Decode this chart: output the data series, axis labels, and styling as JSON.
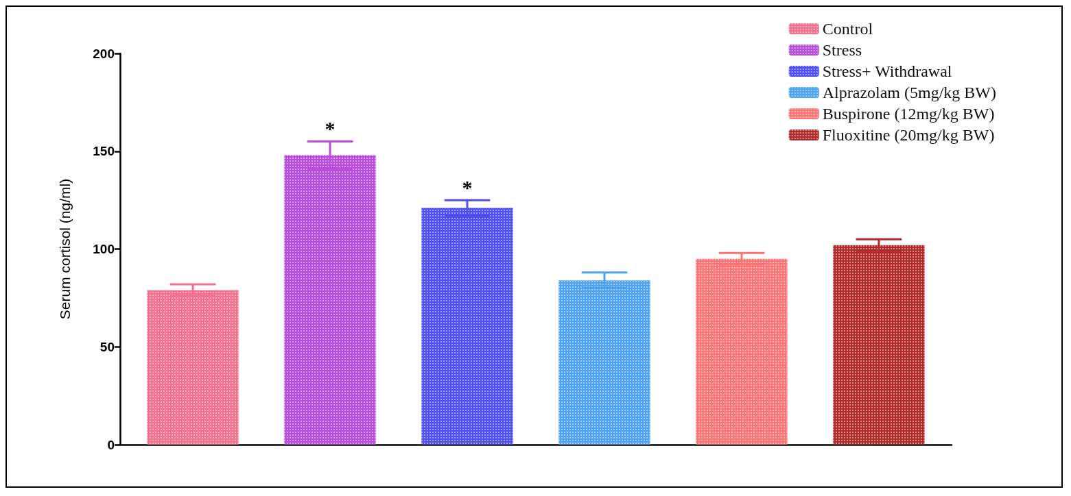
{
  "chart_data": {
    "type": "bar",
    "ylabel": "Serum cortisol (ng/ml)",
    "categories": [
      null
    ],
    "ylim": [
      0,
      200
    ],
    "yticks": [
      0,
      50,
      100,
      150,
      200
    ],
    "grid": false,
    "legend": "top right",
    "series": [
      {
        "name": "Control",
        "color": "#f0708e",
        "values": [
          79
        ],
        "errors": [
          3
        ]
      },
      {
        "name": "Stress",
        "color": "#b84ddb",
        "values": [
          148
        ],
        "errors": [
          7
        ],
        "value_labels": [
          "*"
        ]
      },
      {
        "name": "Stress+ Withdrawal",
        "color": "#4f4ff0",
        "values": [
          121
        ],
        "errors": [
          4
        ],
        "value_labels": [
          "*"
        ]
      },
      {
        "name": "Alprazolam (5mg/kg BW)",
        "color": "#4ea2f2",
        "values": [
          84
        ],
        "errors": [
          4
        ]
      },
      {
        "name": "Buspirone (12mg/kg BW)",
        "color": "#f87474",
        "values": [
          95
        ],
        "errors": [
          3
        ]
      },
      {
        "name": "Fluoxitine (20mg/kg BW)",
        "color": "#b02a2a",
        "values": [
          102
        ],
        "errors": [
          3
        ]
      }
    ]
  }
}
